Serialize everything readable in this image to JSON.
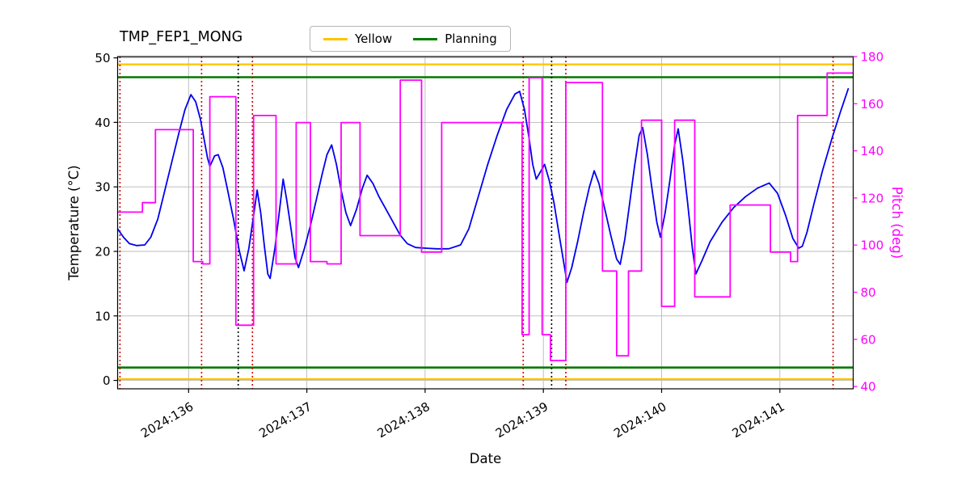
{
  "chart_data": {
    "type": "line",
    "title": "TMP_FEP1_MONG",
    "xlabel": "Date",
    "ylabel_left": "Temperature (°C)",
    "ylabel_right": "Pitch (deg)",
    "xlim": [
      135.4,
      141.62
    ],
    "ylim_left": [
      -1.3,
      50.2
    ],
    "ylim_right": [
      39,
      180
    ],
    "x_ticks": [
      136,
      137,
      138,
      139,
      140,
      141
    ],
    "x_tick_labels": [
      "2024:136",
      "2024:137",
      "2024:138",
      "2024:139",
      "2024:140",
      "2024:141"
    ],
    "y_ticks_left": [
      0,
      10,
      20,
      30,
      40,
      50
    ],
    "y_ticks_right": [
      40,
      60,
      80,
      100,
      120,
      140,
      160,
      180
    ],
    "grid": true,
    "colors": {
      "temperature": "#0000f0",
      "pitch": "#ff00ff",
      "yellow_limit": "#ffc400",
      "planning_limit": "#007a00",
      "red_vline": "#cc0000",
      "black_vline": "#000000",
      "grid": "#b8b8b8",
      "axis": "#000000"
    },
    "legend": {
      "position": "top-center",
      "entries": [
        {
          "label": "Yellow",
          "color": "#ffc400"
        },
        {
          "label": "Planning",
          "color": "#007a00"
        }
      ]
    },
    "limit_lines": {
      "yellow_high": 49,
      "yellow_low": 0.2,
      "planning_high": 47,
      "planning_low": 2
    },
    "vlines": {
      "red_dotted": [
        135.42,
        136.11,
        136.54,
        138.83,
        139.19,
        141.45
      ],
      "black_dotted": [
        136.42,
        139.07
      ]
    },
    "series": [
      {
        "name": "temperature",
        "axis": "left",
        "style": "line",
        "color": "#0000f0",
        "points": [
          [
            135.4,
            23.5
          ],
          [
            135.45,
            22.2
          ],
          [
            135.5,
            21.2
          ],
          [
            135.56,
            20.9
          ],
          [
            135.63,
            21.0
          ],
          [
            135.68,
            22.2
          ],
          [
            135.74,
            25.0
          ],
          [
            135.8,
            29.5
          ],
          [
            135.86,
            34.0
          ],
          [
            135.92,
            38.5
          ],
          [
            135.97,
            42.0
          ],
          [
            136.02,
            44.3
          ],
          [
            136.06,
            43.2
          ],
          [
            136.1,
            40.5
          ],
          [
            136.13,
            37.5
          ],
          [
            136.16,
            34.5
          ],
          [
            136.18,
            33.2
          ],
          [
            136.22,
            34.8
          ],
          [
            136.25,
            35.0
          ],
          [
            136.29,
            33.0
          ],
          [
            136.33,
            29.5
          ],
          [
            136.38,
            25.0
          ],
          [
            136.43,
            20.0
          ],
          [
            136.47,
            17.0
          ],
          [
            136.51,
            20.5
          ],
          [
            136.55,
            25.5
          ],
          [
            136.58,
            29.5
          ],
          [
            136.61,
            26.0
          ],
          [
            136.64,
            21.0
          ],
          [
            136.67,
            16.5
          ],
          [
            136.69,
            15.8
          ],
          [
            136.73,
            20.5
          ],
          [
            136.77,
            26.5
          ],
          [
            136.8,
            31.2
          ],
          [
            136.83,
            28.0
          ],
          [
            136.87,
            23.0
          ],
          [
            136.9,
            19.0
          ],
          [
            136.93,
            17.5
          ],
          [
            136.98,
            20.5
          ],
          [
            137.03,
            24.0
          ],
          [
            137.08,
            28.0
          ],
          [
            137.13,
            32.0
          ],
          [
            137.17,
            35.0
          ],
          [
            137.21,
            36.5
          ],
          [
            137.25,
            33.5
          ],
          [
            137.29,
            29.5
          ],
          [
            137.33,
            26.0
          ],
          [
            137.37,
            24.0
          ],
          [
            137.42,
            26.5
          ],
          [
            137.47,
            29.8
          ],
          [
            137.51,
            31.8
          ],
          [
            137.56,
            30.5
          ],
          [
            137.61,
            28.5
          ],
          [
            137.67,
            26.5
          ],
          [
            137.73,
            24.5
          ],
          [
            137.79,
            22.5
          ],
          [
            137.85,
            21.2
          ],
          [
            137.92,
            20.6
          ],
          [
            138.0,
            20.5
          ],
          [
            138.1,
            20.4
          ],
          [
            138.2,
            20.4
          ],
          [
            138.3,
            21.0
          ],
          [
            138.37,
            23.5
          ],
          [
            138.45,
            28.5
          ],
          [
            138.53,
            33.5
          ],
          [
            138.61,
            38.0
          ],
          [
            138.69,
            42.0
          ],
          [
            138.76,
            44.4
          ],
          [
            138.8,
            44.8
          ],
          [
            138.84,
            42.0
          ],
          [
            138.88,
            37.5
          ],
          [
            138.91,
            33.5
          ],
          [
            138.94,
            31.2
          ],
          [
            138.98,
            32.5
          ],
          [
            139.01,
            33.5
          ],
          [
            139.05,
            31.0
          ],
          [
            139.09,
            27.5
          ],
          [
            139.13,
            23.0
          ],
          [
            139.17,
            18.5
          ],
          [
            139.2,
            15.2
          ],
          [
            139.24,
            17.5
          ],
          [
            139.29,
            21.5
          ],
          [
            139.34,
            26.0
          ],
          [
            139.39,
            30.0
          ],
          [
            139.43,
            32.5
          ],
          [
            139.47,
            30.5
          ],
          [
            139.52,
            26.5
          ],
          [
            139.57,
            22.5
          ],
          [
            139.62,
            18.8
          ],
          [
            139.65,
            18.0
          ],
          [
            139.69,
            22.0
          ],
          [
            139.73,
            27.5
          ],
          [
            139.77,
            33.0
          ],
          [
            139.81,
            38.0
          ],
          [
            139.84,
            39.2
          ],
          [
            139.88,
            35.0
          ],
          [
            139.92,
            29.5
          ],
          [
            139.96,
            24.5
          ],
          [
            139.99,
            22.2
          ],
          [
            140.03,
            26.0
          ],
          [
            140.07,
            31.0
          ],
          [
            140.11,
            36.5
          ],
          [
            140.14,
            39.0
          ],
          [
            140.18,
            34.0
          ],
          [
            140.22,
            27.5
          ],
          [
            140.26,
            20.5
          ],
          [
            140.29,
            16.5
          ],
          [
            140.34,
            18.5
          ],
          [
            140.41,
            21.5
          ],
          [
            140.51,
            24.5
          ],
          [
            140.61,
            26.8
          ],
          [
            140.71,
            28.5
          ],
          [
            140.81,
            29.8
          ],
          [
            140.91,
            30.6
          ],
          [
            140.98,
            29.0
          ],
          [
            141.05,
            25.5
          ],
          [
            141.11,
            22.0
          ],
          [
            141.16,
            20.5
          ],
          [
            141.19,
            20.8
          ],
          [
            141.23,
            23.0
          ],
          [
            141.29,
            27.5
          ],
          [
            141.36,
            32.5
          ],
          [
            141.44,
            37.5
          ],
          [
            141.51,
            41.5
          ],
          [
            141.58,
            45.3
          ]
        ]
      },
      {
        "name": "pitch",
        "axis": "right",
        "style": "step",
        "color": "#ff00ff",
        "points": [
          [
            135.4,
            114
          ],
          [
            135.61,
            118
          ],
          [
            135.72,
            149
          ],
          [
            136.04,
            93
          ],
          [
            136.12,
            92
          ],
          [
            136.18,
            163
          ],
          [
            136.4,
            66
          ],
          [
            136.55,
            155
          ],
          [
            136.74,
            92
          ],
          [
            136.91,
            152
          ],
          [
            137.03,
            93
          ],
          [
            137.17,
            92
          ],
          [
            137.29,
            152
          ],
          [
            137.45,
            104
          ],
          [
            137.79,
            170
          ],
          [
            137.97,
            97
          ],
          [
            138.14,
            152
          ],
          [
            138.82,
            62
          ],
          [
            138.88,
            171
          ],
          [
            138.99,
            62
          ],
          [
            139.06,
            51
          ],
          [
            139.19,
            169
          ],
          [
            139.5,
            89
          ],
          [
            139.62,
            53
          ],
          [
            139.72,
            89
          ],
          [
            139.83,
            153
          ],
          [
            140.0,
            74
          ],
          [
            140.11,
            153
          ],
          [
            140.28,
            78
          ],
          [
            140.58,
            117
          ],
          [
            140.92,
            97
          ],
          [
            141.09,
            93
          ],
          [
            141.15,
            155
          ],
          [
            141.4,
            173
          ],
          [
            141.62,
            173
          ]
        ]
      }
    ]
  }
}
